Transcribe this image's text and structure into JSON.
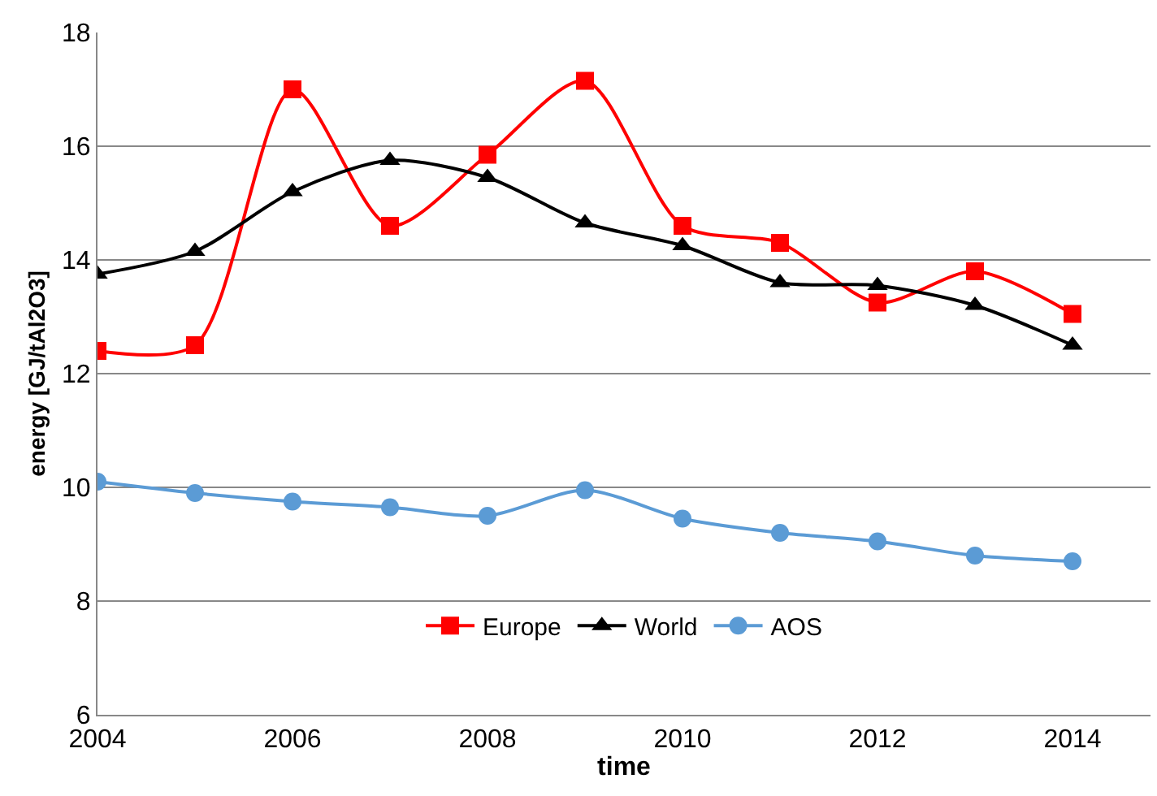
{
  "chart_data": {
    "type": "line",
    "xlabel": "time",
    "ylabel": "energy [GJ/tAl2O3]",
    "x": [
      2004,
      2005,
      2006,
      2007,
      2008,
      2009,
      2010,
      2011,
      2012,
      2013,
      2014
    ],
    "series": [
      {
        "name": "Europe",
        "color": "#ff0000",
        "marker": "square",
        "values": [
          12.4,
          12.5,
          17.0,
          14.6,
          15.85,
          17.15,
          14.6,
          14.3,
          13.25,
          13.8,
          13.05
        ]
      },
      {
        "name": "World",
        "color": "#000000",
        "marker": "triangle",
        "values": [
          13.75,
          14.15,
          15.2,
          15.75,
          15.45,
          14.65,
          14.25,
          13.6,
          13.55,
          13.2,
          12.5
        ]
      },
      {
        "name": "AOS",
        "color": "#5b9bd5",
        "marker": "circle",
        "values": [
          10.1,
          9.9,
          9.75,
          9.65,
          9.5,
          9.95,
          9.45,
          9.2,
          9.05,
          8.8,
          8.7
        ]
      }
    ],
    "xlim": [
      2004,
      2014.8
    ],
    "xticks": [
      2004,
      2006,
      2008,
      2010,
      2012,
      2014
    ],
    "ylim": [
      6,
      18
    ],
    "yticks": [
      6,
      8,
      10,
      12,
      14,
      16,
      18
    ],
    "grid": "y",
    "legend": "bottom",
    "line_style": "solid"
  }
}
